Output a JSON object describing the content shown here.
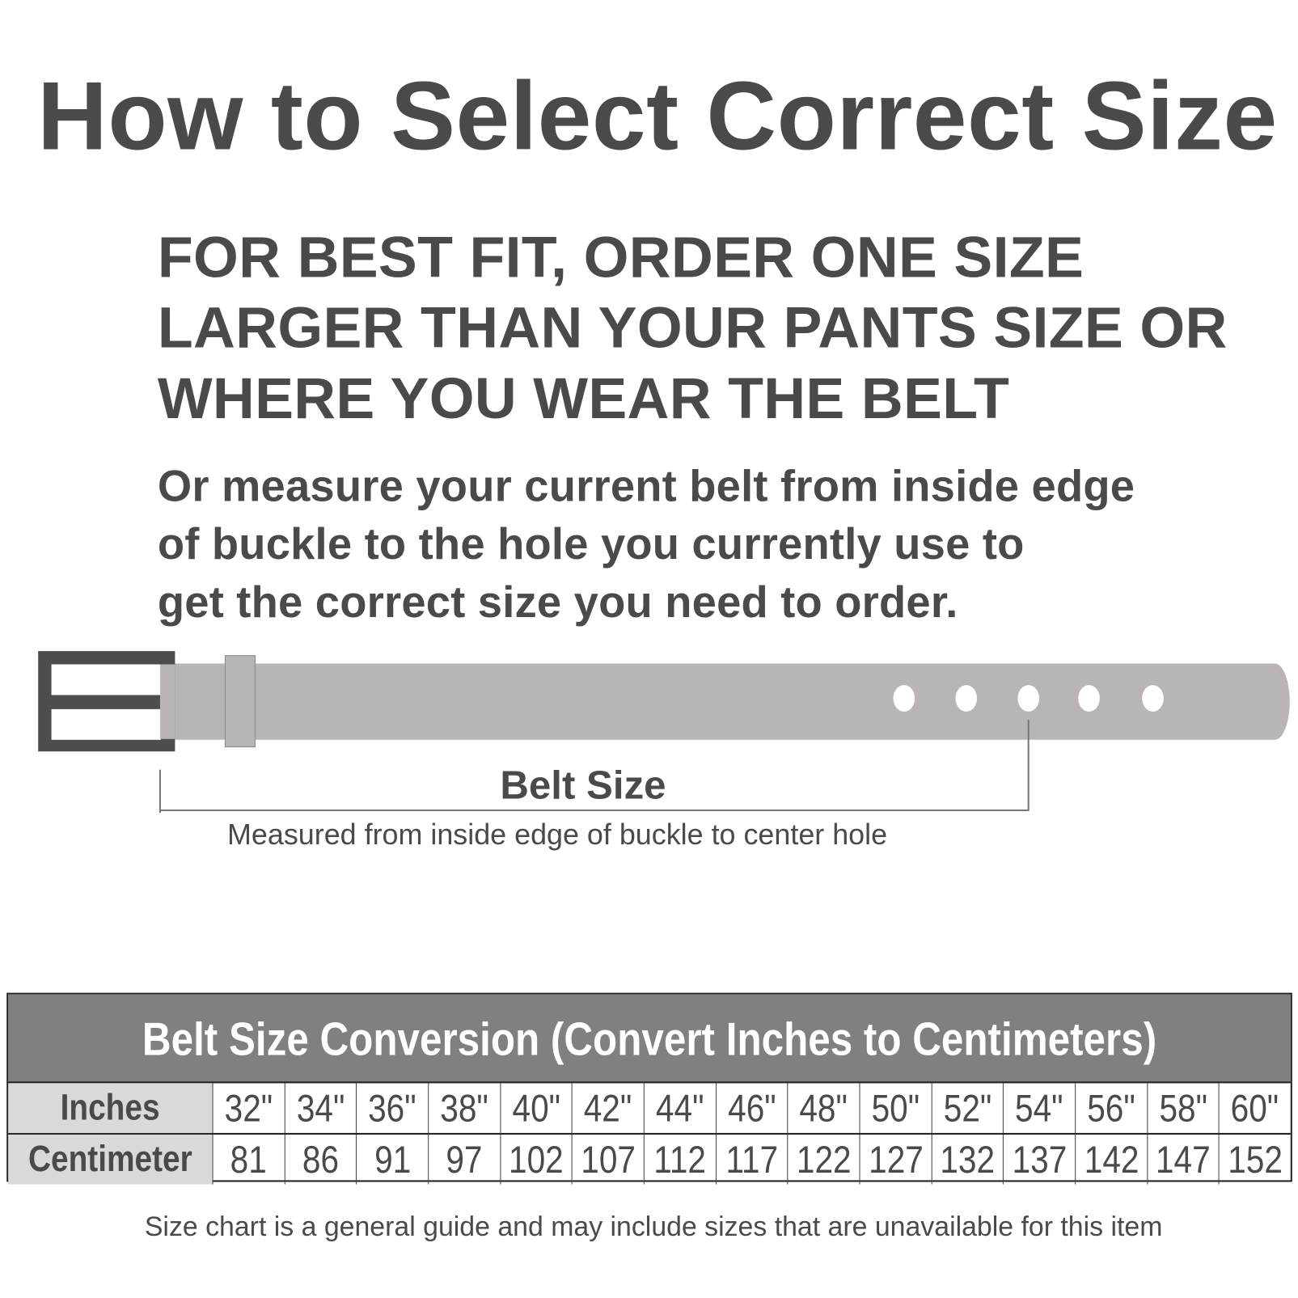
{
  "title": "How to Select Correct Size",
  "advice_lines": [
    "FOR BEST FIT, ORDER ONE SIZE",
    "LARGER THAN YOUR PANTS SIZE OR",
    "WHERE YOU WEAR THE BELT"
  ],
  "measure_lines": [
    "Or measure your current belt from inside edge",
    "of buckle to the hole you currently use to",
    "get the correct size you need to order."
  ],
  "diagram": {
    "belt_size_label": "Belt Size",
    "caption": "Measured from inside edge of buckle to center hole",
    "colors": {
      "buckle": "#4d4d4d",
      "strap": "#b9b5b6"
    }
  },
  "table": {
    "title": "Belt Size Conversion (Convert Inches to Centimeters)",
    "rows": [
      {
        "label": "Inches",
        "values": [
          "32\"",
          "34\"",
          "36\"",
          "38\"",
          "40\"",
          "42\"",
          "44\"",
          "46\"",
          "48\"",
          "50\"",
          "52\"",
          "54\"",
          "56\"",
          "58\"",
          "60\""
        ]
      },
      {
        "label": "Centimeter",
        "values": [
          "81",
          "86",
          "91",
          "97",
          "102",
          "107",
          "112",
          "117",
          "122",
          "127",
          "132",
          "137",
          "142",
          "147",
          "152"
        ]
      }
    ],
    "colors": {
      "header_bg": "#808080",
      "row_label_bg": "#d9d9d9"
    }
  },
  "footer": "Size chart is a general guide and may include sizes that are unavailable for this item"
}
